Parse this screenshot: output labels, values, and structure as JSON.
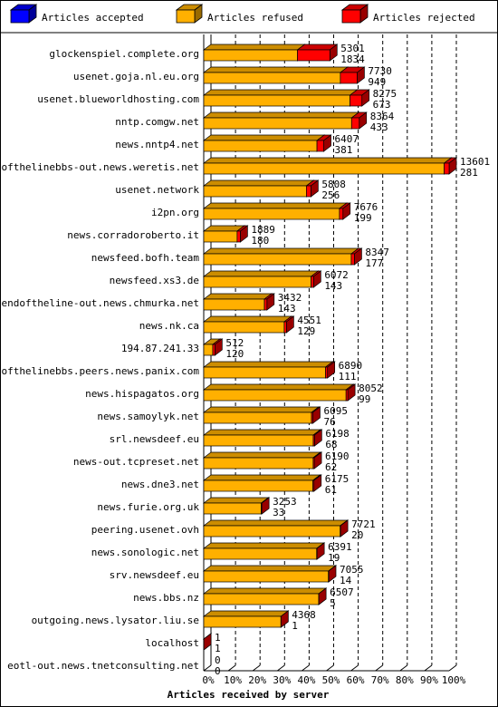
{
  "chart_data": {
    "type": "bar",
    "orientation": "horizontal",
    "stacked": true,
    "xlabel": "Articles received by server",
    "xlim": [
      0,
      100
    ],
    "x_unit": "%",
    "x_ticks": [
      "0%",
      "10%",
      "20%",
      "30%",
      "40%",
      "50%",
      "60%",
      "70%",
      "80%",
      "90%",
      "100%"
    ],
    "grid": true,
    "legend_placement": "top",
    "series": [
      {
        "name": "Articles accepted",
        "color": "#0000ff"
      },
      {
        "name": "Articles refused",
        "color": "#ffb000"
      },
      {
        "name": "Articles rejected",
        "color": "#ff0000"
      }
    ],
    "rows": [
      {
        "server": "glockenspiel.complete.org",
        "refused": 5301,
        "rejected": 1834
      },
      {
        "server": "usenet.goja.nl.eu.org",
        "refused": 7730,
        "rejected": 949
      },
      {
        "server": "usenet.blueworldhosting.com",
        "refused": 8275,
        "rejected": 673
      },
      {
        "server": "nntp.comgw.net",
        "refused": 8364,
        "rejected": 433
      },
      {
        "server": "news.nntp4.net",
        "refused": 6407,
        "rejected": 381
      },
      {
        "server": "endofthelinebbs-out.news.weretis.net",
        "refused": 13601,
        "rejected": 281
      },
      {
        "server": "usenet.network",
        "refused": 5808,
        "rejected": 256
      },
      {
        "server": "i2pn.org",
        "refused": 7676,
        "rejected": 199
      },
      {
        "server": "news.corradoroberto.it",
        "refused": 1889,
        "rejected": 180
      },
      {
        "server": "newsfeed.bofh.team",
        "refused": 8347,
        "rejected": 177
      },
      {
        "server": "newsfeed.xs3.de",
        "refused": 6072,
        "rejected": 143
      },
      {
        "server": "endoftheline-out.news.chmurka.net",
        "refused": 3432,
        "rejected": 143
      },
      {
        "server": "news.nk.ca",
        "refused": 4551,
        "rejected": 129
      },
      {
        "server": "194.87.241.33",
        "refused": 512,
        "rejected": 120
      },
      {
        "server": "endofthelinebbs.peers.news.panix.com",
        "refused": 6890,
        "rejected": 111
      },
      {
        "server": "news.hispagatos.org",
        "refused": 8052,
        "rejected": 99
      },
      {
        "server": "news.samoylyk.net",
        "refused": 6095,
        "rejected": 76
      },
      {
        "server": "srl.newsdeef.eu",
        "refused": 6198,
        "rejected": 68
      },
      {
        "server": "news-out.tcpreset.net",
        "refused": 6190,
        "rejected": 62
      },
      {
        "server": "news.dne3.net",
        "refused": 6175,
        "rejected": 61
      },
      {
        "server": "news.furie.org.uk",
        "refused": 3253,
        "rejected": 33
      },
      {
        "server": "peering.usenet.ovh",
        "refused": 7721,
        "rejected": 20
      },
      {
        "server": "news.sonologic.net",
        "refused": 6391,
        "rejected": 19
      },
      {
        "server": "srv.newsdeef.eu",
        "refused": 7055,
        "rejected": 14
      },
      {
        "server": "news.bbs.nz",
        "refused": 6507,
        "rejected": 5
      },
      {
        "server": "outgoing.news.lysator.liu.se",
        "refused": 4368,
        "rejected": 1
      },
      {
        "server": "localhost",
        "refused": 1,
        "rejected": 1
      },
      {
        "server": "eotl-out.news.tnetconsulting.net",
        "refused": 0,
        "rejected": 0
      }
    ]
  }
}
